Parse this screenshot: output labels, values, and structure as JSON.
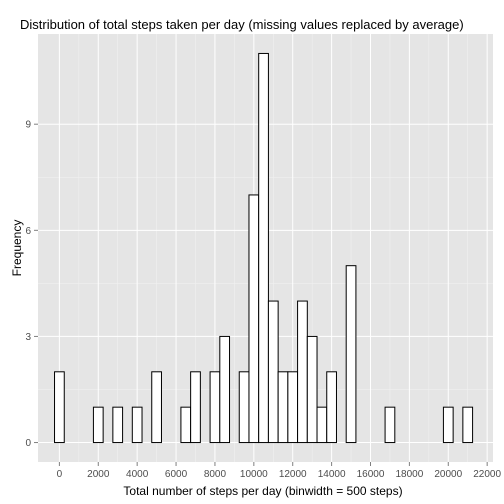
{
  "chart_data": {
    "type": "bar",
    "title": "Distribution of total steps taken per day (missing values replaced by average)",
    "xlabel": "Total number of steps per day (binwidth = 500 steps)",
    "ylabel": "Frequency",
    "binwidth": 500,
    "xlim": [
      -1100,
      22300
    ],
    "ylim": [
      -0.55,
      11.55
    ],
    "x_ticks": [
      0,
      2000,
      4000,
      6000,
      8000,
      10000,
      12000,
      14000,
      16000,
      18000,
      20000,
      22000
    ],
    "x_tick_labels": [
      "0",
      "2000",
      "4000",
      "6000",
      "8000",
      "10000",
      "12000",
      "14000",
      "16000",
      "18000",
      "20000",
      "22000"
    ],
    "y_ticks": [
      0,
      3,
      6,
      9
    ],
    "y_tick_labels": [
      "0",
      "3",
      "6",
      "9"
    ],
    "bins": [
      {
        "x": -500,
        "count": 0
      },
      {
        "x": 0,
        "count": 2
      },
      {
        "x": 500,
        "count": 0
      },
      {
        "x": 1000,
        "count": 0
      },
      {
        "x": 1500,
        "count": 0
      },
      {
        "x": 2000,
        "count": 1
      },
      {
        "x": 2500,
        "count": 0
      },
      {
        "x": 3000,
        "count": 1
      },
      {
        "x": 3500,
        "count": 0
      },
      {
        "x": 4000,
        "count": 1
      },
      {
        "x": 4500,
        "count": 0
      },
      {
        "x": 5000,
        "count": 2
      },
      {
        "x": 5500,
        "count": 0
      },
      {
        "x": 6000,
        "count": 0
      },
      {
        "x": 6500,
        "count": 1
      },
      {
        "x": 7000,
        "count": 2
      },
      {
        "x": 7500,
        "count": 0
      },
      {
        "x": 8000,
        "count": 2
      },
      {
        "x": 8500,
        "count": 3
      },
      {
        "x": 9000,
        "count": 0
      },
      {
        "x": 9500,
        "count": 2
      },
      {
        "x": 10000,
        "count": 7
      },
      {
        "x": 10500,
        "count": 11
      },
      {
        "x": 11000,
        "count": 4
      },
      {
        "x": 11500,
        "count": 2
      },
      {
        "x": 12000,
        "count": 2
      },
      {
        "x": 12500,
        "count": 4
      },
      {
        "x": 13000,
        "count": 3
      },
      {
        "x": 13500,
        "count": 1
      },
      {
        "x": 14000,
        "count": 2
      },
      {
        "x": 14500,
        "count": 0
      },
      {
        "x": 15000,
        "count": 5
      },
      {
        "x": 15500,
        "count": 0
      },
      {
        "x": 16000,
        "count": 0
      },
      {
        "x": 16500,
        "count": 0
      },
      {
        "x": 17000,
        "count": 1
      },
      {
        "x": 17500,
        "count": 0
      },
      {
        "x": 18000,
        "count": 0
      },
      {
        "x": 18500,
        "count": 0
      },
      {
        "x": 19000,
        "count": 0
      },
      {
        "x": 19500,
        "count": 0
      },
      {
        "x": 20000,
        "count": 1
      },
      {
        "x": 20500,
        "count": 0
      },
      {
        "x": 21000,
        "count": 1
      },
      {
        "x": 21500,
        "count": 0
      }
    ],
    "grid": true,
    "legend": "none",
    "colors": {
      "panel_background": "#e5e5e5",
      "grid_major": "#ffffff",
      "grid_minor": "#f2f2f2",
      "bar_fill": "#ffffff",
      "bar_outline": "#000000",
      "tick_text": "#4d4d4d"
    }
  }
}
